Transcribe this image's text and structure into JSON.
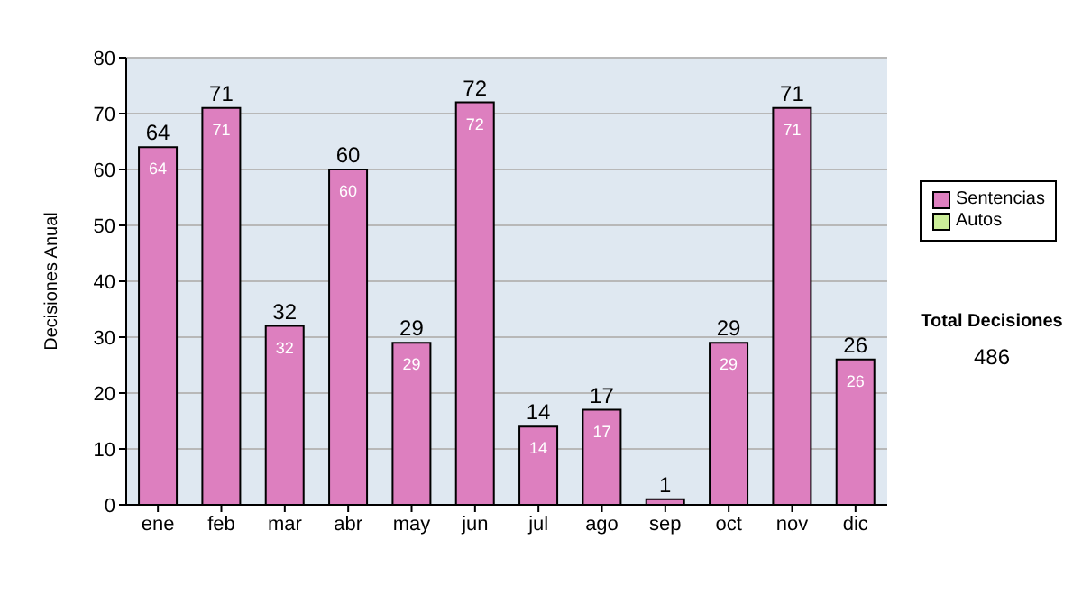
{
  "chart_data": {
    "type": "bar",
    "ylabel": "Decisiones Anual",
    "categories": [
      "ene",
      "feb",
      "mar",
      "abr",
      "may",
      "jun",
      "jul",
      "ago",
      "sep",
      "oct",
      "nov",
      "dic"
    ],
    "series": [
      {
        "name": "Sentencias",
        "color": "#dd7fbf",
        "values": [
          64,
          71,
          32,
          60,
          29,
          72,
          14,
          17,
          1,
          29,
          71,
          26
        ],
        "value_labels": [
          "64",
          "71",
          "32",
          "60",
          "29",
          "72",
          "14",
          "17",
          null,
          "29",
          "71",
          "26"
        ]
      },
      {
        "name": "Autos",
        "color": "#ccee99",
        "values": [
          0,
          0,
          0,
          0,
          0,
          0,
          0,
          0,
          0,
          0,
          0,
          0
        ]
      }
    ],
    "stacked": true,
    "totals": [
      "64",
      "71",
      "32",
      "60",
      "29",
      "72",
      "14",
      "17",
      "1",
      "29",
      "71",
      "26"
    ],
    "ylim": [
      0,
      80
    ],
    "yticks": [
      0,
      10,
      20,
      30,
      40,
      50,
      60,
      70,
      80
    ],
    "grid": "y",
    "legend": "right",
    "annotations": [
      "Total Decisiones",
      "486"
    ]
  }
}
